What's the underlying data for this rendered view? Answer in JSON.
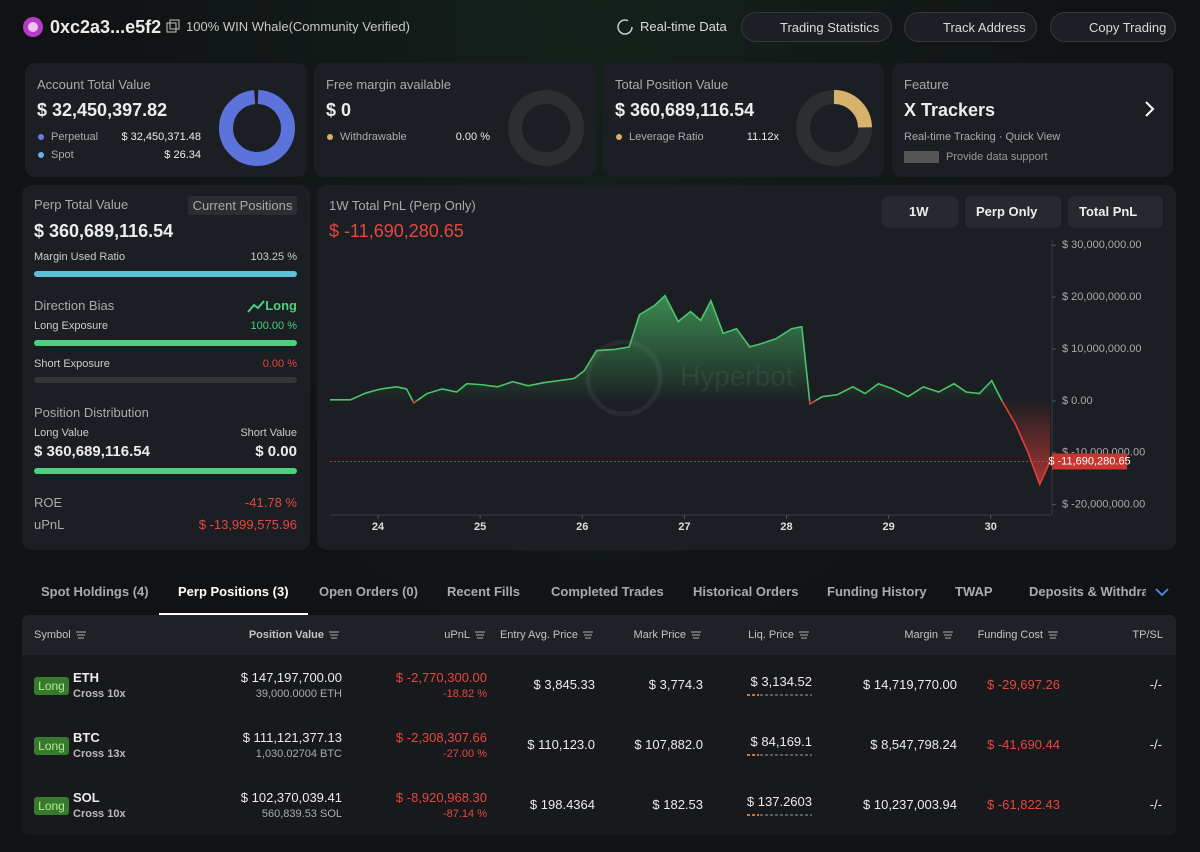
{
  "header": {
    "address": "0xc2a3...e5f2",
    "tag": "100% WIN Whale(Community Verified)",
    "nav": [
      "Real-time Data",
      "Trading Statistics",
      "Track Address",
      "Copy Trading"
    ]
  },
  "cards": {
    "account": {
      "label": "Account Total Value",
      "value": "$ 32,450,397.82",
      "rows": [
        {
          "label": "Perpetual",
          "value": "$ 32,450,371.48"
        },
        {
          "label": "Spot",
          "value": "$ 26.34"
        }
      ]
    },
    "margin": {
      "label": "Free margin available",
      "value": "$ 0",
      "rows": [
        {
          "label": "Withdrawable",
          "value": "0.00 %"
        }
      ]
    },
    "position": {
      "label": "Total Position Value",
      "value": "$ 360,689,116.54",
      "rows": [
        {
          "label": "Leverage Ratio",
          "value": "11.12x"
        }
      ]
    },
    "feature": {
      "label": "Feature",
      "title": "X Trackers",
      "subtitle": "Real-time Tracking · Quick View",
      "note": "Provide data support"
    }
  },
  "perp": {
    "title": "Perp Total Value",
    "badge": "Current Positions",
    "value": "$ 360,689,116.54",
    "margin_label": "Margin Used Ratio",
    "margin_ratio": "103.25 %",
    "bias_label": "Direction Bias",
    "bias": "Long",
    "long_label": "Long Exposure",
    "long_exposure": "100.00 %",
    "short_label": "Short Exposure",
    "short_exposure": "0.00 %",
    "dist_label": "Position Distribution",
    "long_value_label": "Long Value",
    "short_value_label": "Short Value",
    "long_value": "$ 360,689,116.54",
    "short_value": "$ 0.00",
    "roe_label": "ROE",
    "roe": "-41.78 %",
    "upnl_label": "uPnL",
    "upnl": "$ -13,999,575.96"
  },
  "chart_data": {
    "type": "line",
    "title": "1W Total PnL (Perp Only)",
    "current": {
      "value": -11690280.65,
      "label": "$ -11,690,280.65"
    },
    "controls": [
      "1W",
      "Perp Only",
      "Total PnL"
    ],
    "watermark": "Hyperbot",
    "x": [
      23.53,
      23.73,
      23.88,
      24.03,
      24.18,
      24.28,
      24.35,
      24.48,
      24.63,
      24.77,
      24.87,
      25.02,
      25.17,
      25.32,
      25.47,
      25.62,
      25.77,
      25.92,
      26.02,
      26.14,
      26.31,
      26.46,
      26.56,
      26.71,
      26.81,
      26.94,
      27.06,
      27.16,
      27.26,
      27.38,
      27.51,
      27.64,
      27.75,
      27.9,
      28.05,
      28.15,
      28.23,
      28.35,
      28.5,
      28.65,
      28.77,
      28.9,
      29.04,
      29.19,
      29.34,
      29.49,
      29.64,
      29.76,
      29.89,
      30.01,
      30.11,
      30.24,
      30.36,
      30.48,
      30.58
    ],
    "values": [
      200000,
      200000,
      1500000,
      2300000,
      2700000,
      2300000,
      -400000,
      1400000,
      2300000,
      1700000,
      3300000,
      3100000,
      2700000,
      3700000,
      2900000,
      3500000,
      3900000,
      4300000,
      5800000,
      9700000,
      9900000,
      10400000,
      16600000,
      18400000,
      20300000,
      15300000,
      17200000,
      15500000,
      19300000,
      13000000,
      13900000,
      10400000,
      11000000,
      12000000,
      13900000,
      14300000,
      -600000,
      800000,
      1200000,
      2700000,
      1400000,
      3300000,
      2300000,
      800000,
      2700000,
      1700000,
      3300000,
      1700000,
      1400000,
      3900000,
      0,
      -4400000,
      -9700000,
      -16100000,
      -11690280.65
    ],
    "colors": {
      "positive": "#4cc46a",
      "negative": "#e0403a"
    },
    "xlim": [
      23.53,
      30.6
    ],
    "xticks": [
      24,
      25,
      26,
      27,
      28,
      29,
      30
    ],
    "ylim": [
      -22000000,
      31000000
    ],
    "yticks": [
      {
        "value": 30000000,
        "label": "$ 30,000,000.00"
      },
      {
        "value": 20000000,
        "label": "$ 20,000,000.00"
      },
      {
        "value": 10000000,
        "label": "$ 10,000,000.00"
      },
      {
        "value": 0,
        "label": "$ 0.00"
      },
      {
        "value": -10000000,
        "label": "$ -10,000,000.00"
      },
      {
        "value": -20000000,
        "label": "$ -20,000,000.00"
      }
    ]
  },
  "tabs": {
    "items": [
      "Spot Holdings (4)",
      "Perp Positions (3)",
      "Open Orders (0)",
      "Recent Fills",
      "Completed Trades",
      "Historical Orders",
      "Funding History",
      "TWAP",
      "Deposits & Withdrawals"
    ],
    "active": 1
  },
  "table": {
    "columns": [
      "Symbol",
      "Position Value",
      "uPnL",
      "Entry Avg. Price",
      "Mark Price",
      "Liq. Price",
      "Margin",
      "Funding Cost",
      "TP/SL"
    ],
    "rows": [
      {
        "side": "Long",
        "symbol": "ETH",
        "mode": "Cross 10x",
        "value": "$ 147,197,700.00",
        "amount": "39,000.0000 ETH",
        "upnl": "$ -2,770,300.00",
        "upnl_pct": "-18.82 %",
        "entry": "$ 3,845.33",
        "mark": "$ 3,774.3",
        "liq": "$ 3,134.52",
        "margin": "$ 14,719,770.00",
        "funding": "$ -29,697.26",
        "tpsl": "-/-"
      },
      {
        "side": "Long",
        "symbol": "BTC",
        "mode": "Cross 13x",
        "value": "$ 111,121,377.13",
        "amount": "1,030.02704 BTC",
        "upnl": "$ -2,308,307.66",
        "upnl_pct": "-27.00 %",
        "entry": "$ 110,123.0",
        "mark": "$ 107,882.0",
        "liq": "$ 84,169.1",
        "margin": "$ 8,547,798.24",
        "funding": "$ -41,690.44",
        "tpsl": "-/-"
      },
      {
        "side": "Long",
        "symbol": "SOL",
        "mode": "Cross 10x",
        "value": "$ 102,370,039.41",
        "amount": "560,839.53 SOL",
        "upnl": "$ -8,920,968.30",
        "upnl_pct": "-87.14 %",
        "entry": "$ 198.4364",
        "mark": "$ 182.53",
        "liq": "$ 137.2603",
        "margin": "$ 10,237,003.94",
        "funding": "$ -61,822.43",
        "tpsl": "-/-"
      }
    ]
  }
}
